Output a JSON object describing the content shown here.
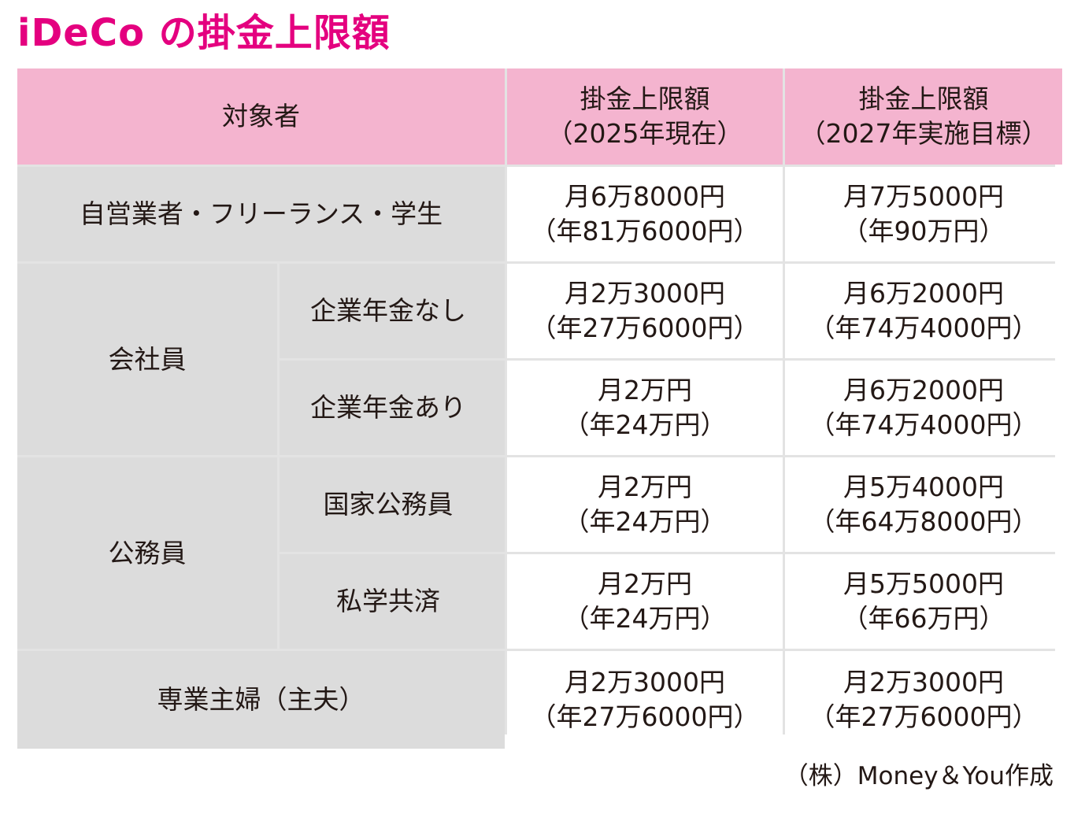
{
  "title": "iDeCo の掛金上限額",
  "header": {
    "target": "対象者",
    "col_2025_line1": "掛金上限額",
    "col_2025_line2": "（2025年現在）",
    "col_2027_line1": "掛金上限額",
    "col_2027_line2": "（2027年実施目標）"
  },
  "rows": [
    {
      "label": "自営業者・フリーランス・学生",
      "v2025": [
        "月6万8000円",
        "（年81万6000円）"
      ],
      "v2027": [
        "月7万5000円",
        "（年90万円）"
      ]
    },
    {
      "group": "会社員",
      "label": "企業年金なし",
      "v2025": [
        "月2万3000円",
        "（年27万6000円）"
      ],
      "v2027": [
        "月6万2000円",
        "（年74万4000円）"
      ]
    },
    {
      "label": "企業年金あり",
      "v2025": [
        "月2万円",
        "（年24万円）"
      ],
      "v2027": [
        "月6万2000円",
        "（年74万4000円）"
      ]
    },
    {
      "group": "公務員",
      "label": "国家公務員",
      "v2025": [
        "月2万円",
        "（年24万円）"
      ],
      "v2027": [
        "月5万4000円",
        "（年64万8000円）"
      ]
    },
    {
      "label": "私学共済",
      "v2025": [
        "月2万円",
        "（年24万円）"
      ],
      "v2027": [
        "月5万5000円",
        "（年66万円）"
      ]
    },
    {
      "label": "専業主婦（主夫）",
      "v2025": [
        "月2万3000円",
        "（年27万6000円）"
      ],
      "v2027": [
        "月2万3000円",
        "（年27万6000円）"
      ]
    }
  ],
  "credit": "（株）Money＆You作成",
  "colors": {
    "title": "#e4007f",
    "header_bg": "#f4b4cf",
    "label_bg": "#dcdcdc",
    "grid_line": "#e3e3e3"
  }
}
